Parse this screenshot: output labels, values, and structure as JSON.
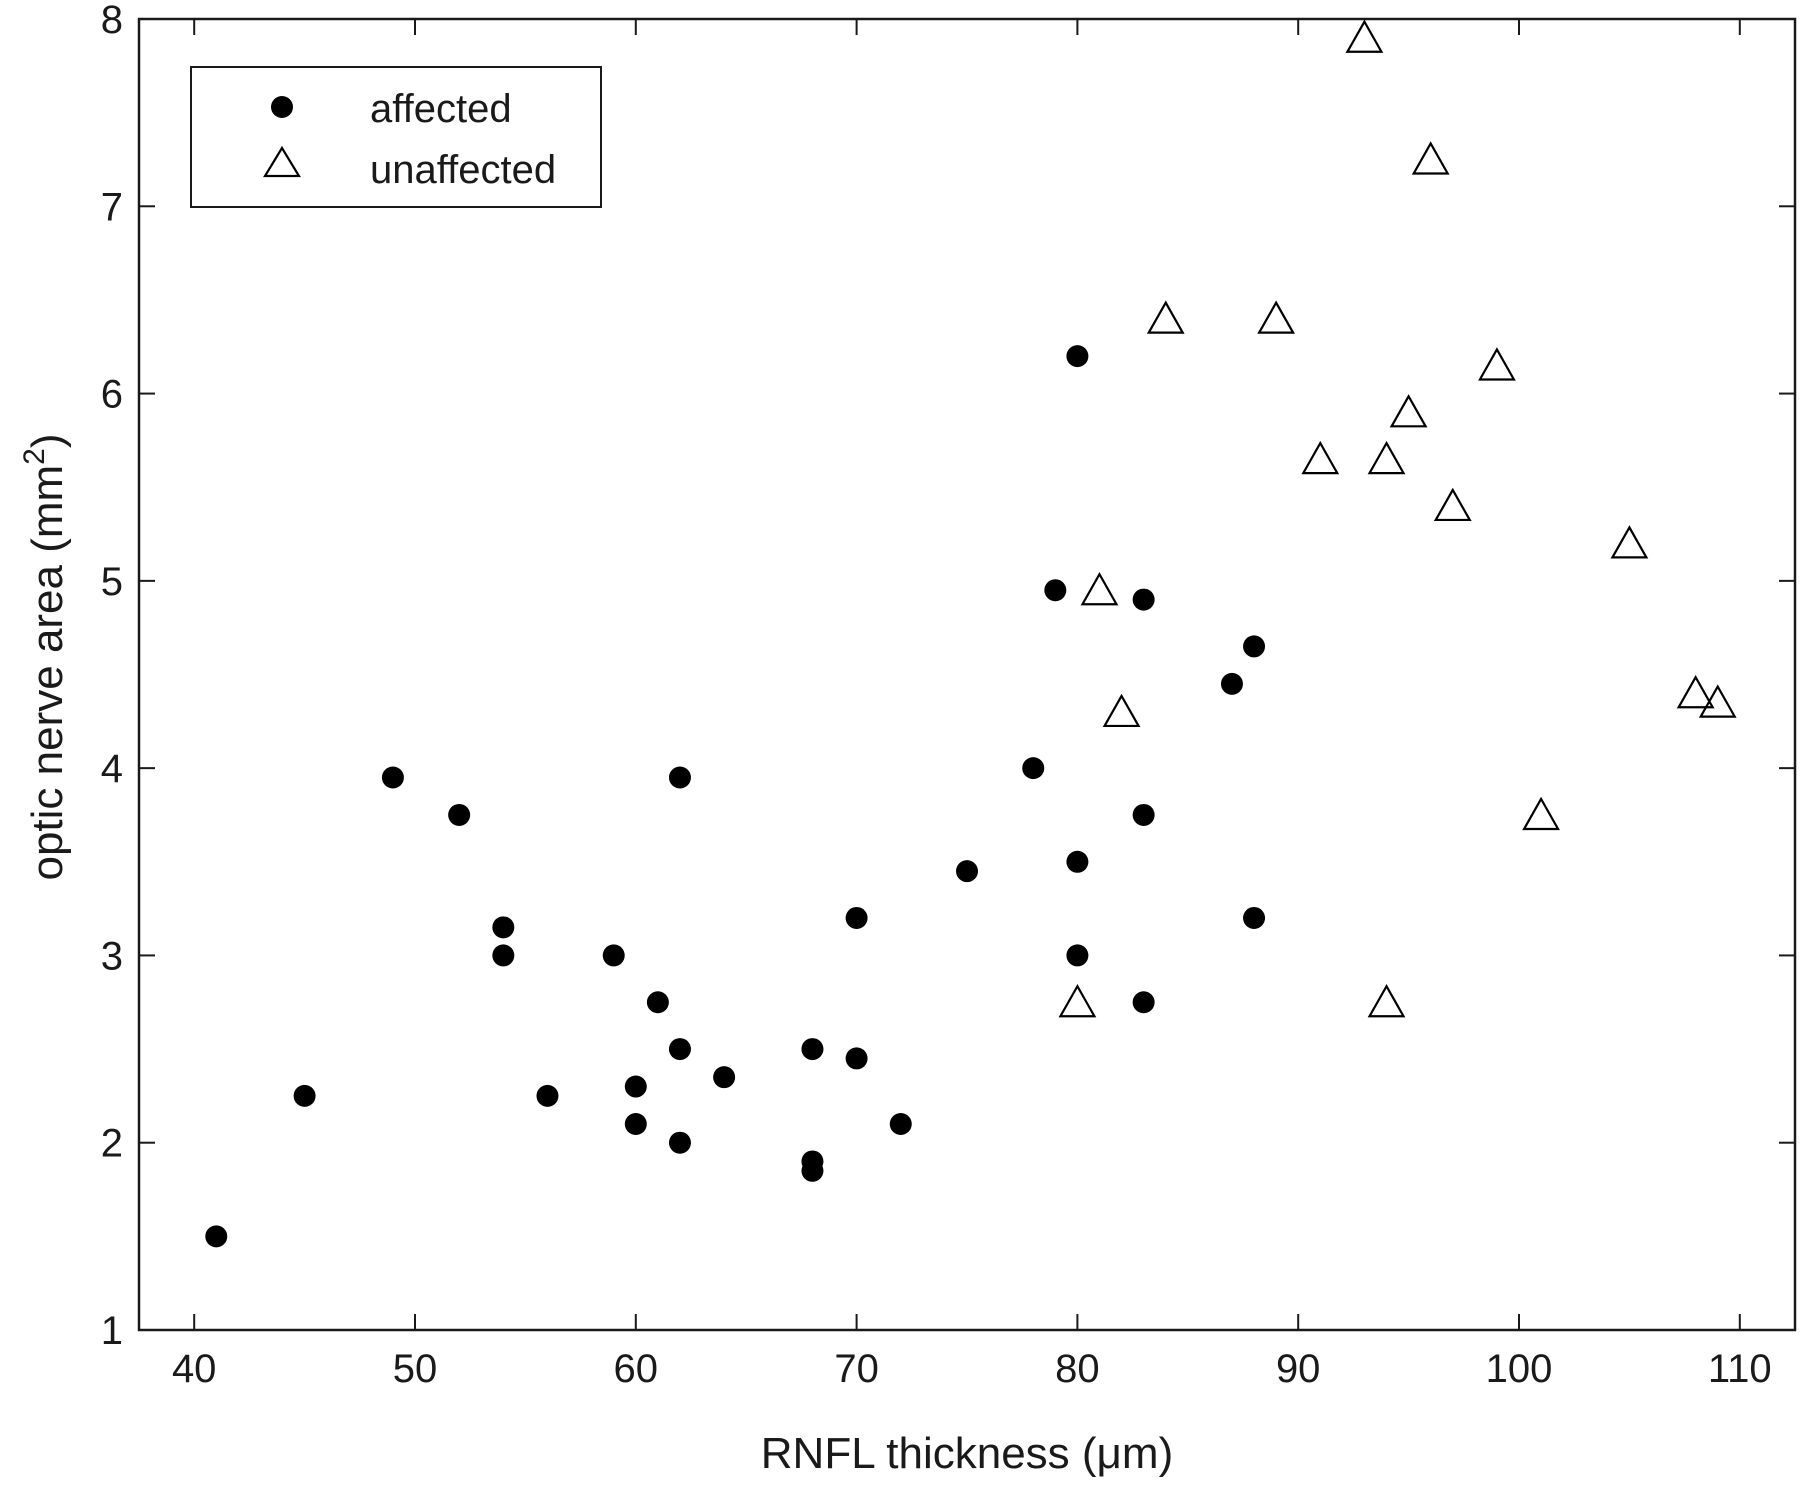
{
  "chart_data": {
    "type": "scatter",
    "xlabel": "RNFL thickness (μm)",
    "ylabel_main": "optic nerve area (mm",
    "ylabel_sup": "2",
    "ylabel_close": ")",
    "xlim": [
      37.5,
      112.5
    ],
    "ylim": [
      1,
      8
    ],
    "xticks": [
      40,
      50,
      60,
      70,
      80,
      90,
      100,
      110
    ],
    "yticks": [
      1,
      2,
      3,
      4,
      5,
      6,
      7,
      8
    ],
    "xtick_labels": [
      "40",
      "50",
      "60",
      "70",
      "80",
      "90",
      "100",
      "110"
    ],
    "ytick_labels": [
      "1",
      "2",
      "3",
      "4",
      "5",
      "6",
      "7",
      "8"
    ],
    "grid": false,
    "legend_position": "top-left",
    "series": [
      {
        "name": "affected",
        "marker": "filled-circle",
        "color": "#000000",
        "points": [
          [
            41,
            1.5
          ],
          [
            45,
            2.25
          ],
          [
            49,
            3.95
          ],
          [
            52,
            3.75
          ],
          [
            54,
            3.15
          ],
          [
            54,
            3.0
          ],
          [
            56,
            2.25
          ],
          [
            59,
            3.0
          ],
          [
            60,
            2.3
          ],
          [
            60,
            2.1
          ],
          [
            61,
            2.75
          ],
          [
            62,
            3.95
          ],
          [
            62,
            2.5
          ],
          [
            62,
            2.0
          ],
          [
            64,
            2.35
          ],
          [
            68,
            2.5
          ],
          [
            68,
            1.9
          ],
          [
            68,
            1.85
          ],
          [
            70,
            3.2
          ],
          [
            70,
            2.45
          ],
          [
            72,
            2.1
          ],
          [
            75,
            3.45
          ],
          [
            78,
            4.0
          ],
          [
            79,
            4.95
          ],
          [
            80,
            6.2
          ],
          [
            80,
            3.5
          ],
          [
            80,
            3.0
          ],
          [
            83,
            4.9
          ],
          [
            83,
            3.75
          ],
          [
            83,
            2.75
          ],
          [
            87,
            4.45
          ],
          [
            88,
            4.65
          ],
          [
            88,
            3.2
          ]
        ]
      },
      {
        "name": "unaffected",
        "marker": "open-triangle",
        "color": "#000000",
        "points": [
          [
            80,
            2.75
          ],
          [
            81,
            4.95
          ],
          [
            82,
            4.3
          ],
          [
            84,
            6.4
          ],
          [
            89,
            6.4
          ],
          [
            91,
            5.65
          ],
          [
            93,
            7.9
          ],
          [
            94,
            5.65
          ],
          [
            94,
            2.75
          ],
          [
            95,
            5.9
          ],
          [
            96,
            7.25
          ],
          [
            97,
            5.4
          ],
          [
            99,
            6.15
          ],
          [
            101,
            3.75
          ],
          [
            105,
            5.2
          ],
          [
            108,
            4.4
          ],
          [
            109,
            4.35
          ]
        ]
      }
    ]
  }
}
